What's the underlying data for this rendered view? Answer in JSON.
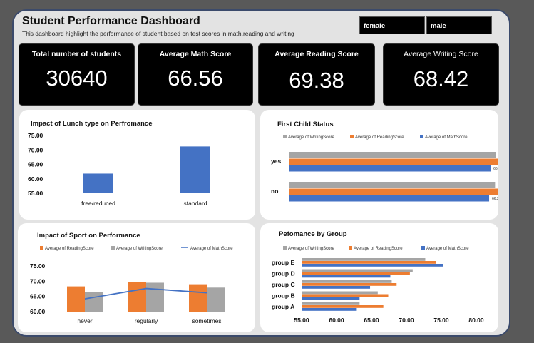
{
  "header": {
    "title": "Student Performance Dashboard",
    "subtitle": "This dashboard highlight the performance of student based on test scores in math,reading and writing"
  },
  "slicers": [
    {
      "label": "female"
    },
    {
      "label": "male"
    }
  ],
  "kpis": [
    {
      "label": "Total number of students",
      "value": "30640"
    },
    {
      "label": "Average Math Score",
      "value": "66.56"
    },
    {
      "label": "Average Reading Score",
      "value": "69.38"
    },
    {
      "label": "Average Writing Score",
      "value": "68.42"
    }
  ],
  "colors": {
    "math": "#4472c4",
    "reading": "#ed7d31",
    "writing": "#a5a5a5"
  },
  "chart_data": [
    {
      "type": "bar",
      "title": "Impact of Lunch type on Perfromance",
      "categories": [
        "free/reduced",
        "standard"
      ],
      "values": [
        61.8,
        71.2
      ],
      "ylim": [
        55,
        75
      ],
      "yticks": [
        "75.00",
        "70.00",
        "65.00",
        "60.00",
        "55.00"
      ],
      "legend": "none"
    },
    {
      "type": "bar",
      "orientation": "horizontal",
      "title": "First Child Status",
      "categories": [
        "yes",
        "no"
      ],
      "legend": "top",
      "series": [
        {
          "name": "Average of WritingScore",
          "values": [
            68.5,
            68.21
          ],
          "labels": [
            "68.50",
            "68.21"
          ]
        },
        {
          "name": "Average of ReadingScore",
          "values": [
            69.54,
            69.13
          ],
          "labels": [
            "69.54",
            "69.13"
          ]
        },
        {
          "name": "Average of MathScore",
          "values": [
            66.74,
            66.25
          ],
          "labels": [
            "66.74",
            "66.25"
          ]
        }
      ]
    },
    {
      "type": "bar",
      "title": "Impact of Sport on Performance",
      "categories": [
        "never",
        "regularly",
        "sometimes"
      ],
      "ylim": [
        60,
        75
      ],
      "yticks": [
        "75.00",
        "70.00",
        "65.00",
        "60.00"
      ],
      "legend": "top",
      "series": [
        {
          "name": "Average of ReadingScore",
          "type": "bar",
          "values": [
            68.3,
            69.8,
            69.0
          ]
        },
        {
          "name": "Average of WritingScore",
          "type": "bar",
          "values": [
            66.5,
            69.5,
            67.9
          ]
        },
        {
          "name": "Average of MathScore",
          "type": "line",
          "values": [
            64.2,
            67.6,
            66.2
          ]
        }
      ]
    },
    {
      "type": "bar",
      "orientation": "horizontal",
      "title": "Pefomance by Group",
      "categories": [
        "group E",
        "group D",
        "group C",
        "group B",
        "group A"
      ],
      "xlim": [
        55,
        80
      ],
      "xticks": [
        "55.00",
        "60.00",
        "65.00",
        "70.00",
        "75.00",
        "80.00"
      ],
      "legend": "top",
      "series": [
        {
          "name": "Average of WritingScore",
          "values": [
            72.7,
            70.9,
            67.9,
            65.9,
            63.3
          ]
        },
        {
          "name": "Average of ReadingScore",
          "values": [
            74.2,
            70.5,
            68.6,
            67.4,
            66.7
          ]
        },
        {
          "name": "Average of MathScore",
          "values": [
            75.3,
            67.7,
            64.8,
            63.3,
            62.9
          ]
        }
      ]
    }
  ]
}
